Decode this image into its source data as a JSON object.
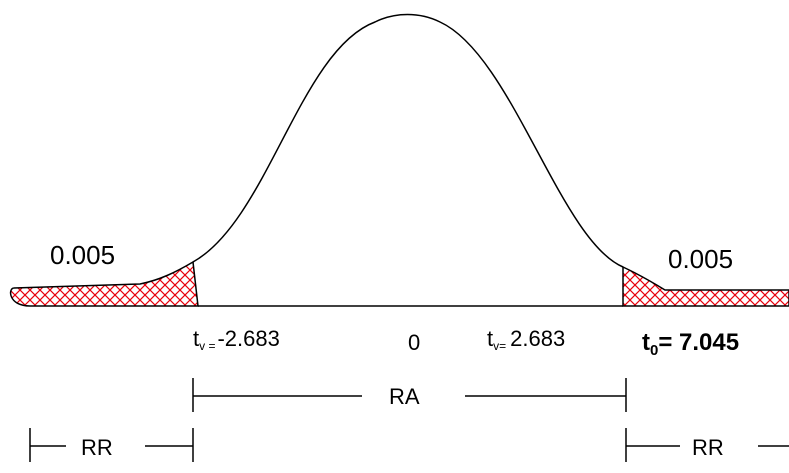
{
  "diagram": {
    "left_tail_area": "0.005",
    "right_tail_area": "0.005",
    "left_critical": {
      "symbol": "t",
      "subscript": "v =",
      "value": "-2.683"
    },
    "center_label": "0",
    "right_critical": {
      "symbol": "t",
      "subscript": "v=",
      "value": "2.683"
    },
    "test_statistic": {
      "symbol": "t",
      "subscript": "0",
      "value": "= 7.045"
    },
    "acceptance_region_label": "RA",
    "left_rejection_label": "RR",
    "right_rejection_label": "RR",
    "colors": {
      "hatch": "#e8000b",
      "curve": "#000000"
    }
  }
}
